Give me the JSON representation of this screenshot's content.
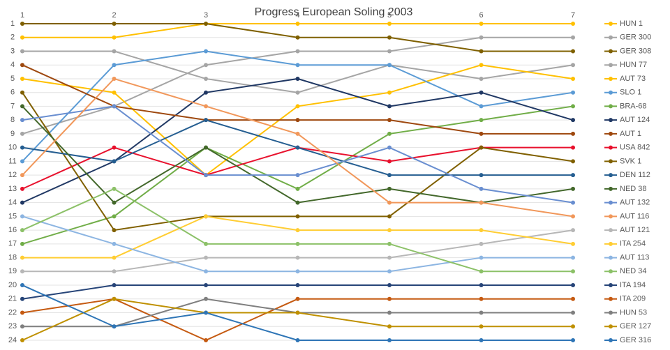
{
  "chart_data": {
    "type": "line",
    "title": "Progress European Soling 2003",
    "x": [
      1,
      2,
      3,
      4,
      5,
      6,
      7
    ],
    "xlim": [
      1,
      7
    ],
    "xticks": [
      1,
      2,
      3,
      4,
      5,
      6,
      7
    ],
    "ylim": [
      1,
      24
    ],
    "yticks": [
      1,
      2,
      3,
      4,
      5,
      6,
      7,
      8,
      9,
      10,
      11,
      12,
      13,
      14,
      15,
      16,
      17,
      18,
      19,
      20,
      21,
      22,
      23,
      24
    ],
    "y_inverted": true,
    "grid": true,
    "legend": "right",
    "series": [
      {
        "name": "HUN 1",
        "color": "#ffc000",
        "values": [
          2,
          2,
          1,
          1,
          1,
          1,
          1
        ]
      },
      {
        "name": "GER 300",
        "color": "#a5a5a5",
        "values": [
          9,
          7,
          4,
          3,
          3,
          2,
          2
        ]
      },
      {
        "name": "GER 308",
        "color": "#7f6000",
        "values": [
          1,
          1,
          1,
          2,
          2,
          3,
          3
        ]
      },
      {
        "name": "HUN 77",
        "color": "#a5a5a5",
        "values": [
          3,
          3,
          5,
          6,
          4,
          5,
          4
        ]
      },
      {
        "name": "AUT 73",
        "color": "#ffc000",
        "values": [
          5,
          6,
          12,
          7,
          6,
          4,
          5
        ]
      },
      {
        "name": "SLO 1",
        "color": "#5b9bd5",
        "values": [
          11,
          4,
          3,
          4,
          4,
          7,
          6
        ]
      },
      {
        "name": "BRA-68",
        "color": "#70ad47",
        "values": [
          17,
          15,
          10,
          13,
          9,
          8,
          7
        ]
      },
      {
        "name": "AUT 124",
        "color": "#203864",
        "values": [
          14,
          11,
          6,
          5,
          7,
          6,
          8
        ]
      },
      {
        "name": "AUT 1",
        "color": "#9e480e",
        "values": [
          4,
          7,
          8,
          8,
          8,
          9,
          9
        ]
      },
      {
        "name": "USA 842",
        "color": "#e8112d",
        "values": [
          13,
          10,
          12,
          10,
          11,
          10,
          10
        ]
      },
      {
        "name": "SVK 1",
        "color": "#806000",
        "values": [
          6,
          16,
          15,
          15,
          15,
          10,
          11
        ]
      },
      {
        "name": "DEN 112",
        "color": "#255e91",
        "values": [
          10,
          11,
          8,
          10,
          12,
          12,
          12
        ]
      },
      {
        "name": "NED 38",
        "color": "#43682b",
        "values": [
          7,
          14,
          10,
          14,
          13,
          14,
          13
        ]
      },
      {
        "name": "AUT 132",
        "color": "#698ed0",
        "values": [
          8,
          7,
          12,
          12,
          10,
          13,
          14
        ]
      },
      {
        "name": "AUT 116",
        "color": "#f1975a",
        "values": [
          12,
          5,
          7,
          9,
          14,
          14,
          15
        ]
      },
      {
        "name": "AUT 121",
        "color": "#b7b7b7",
        "values": [
          19,
          19,
          18,
          18,
          18,
          17,
          16
        ]
      },
      {
        "name": "ITA 254",
        "color": "#ffcd33",
        "values": [
          18,
          18,
          15,
          16,
          16,
          16,
          17
        ]
      },
      {
        "name": "AUT 113",
        "color": "#8cb5e2",
        "values": [
          15,
          17,
          19,
          19,
          19,
          18,
          18
        ]
      },
      {
        "name": "NED 34",
        "color": "#8cc168",
        "values": [
          16,
          13,
          17,
          17,
          17,
          19,
          19
        ]
      },
      {
        "name": "ITA 194",
        "color": "#264478",
        "values": [
          21,
          20,
          20,
          20,
          20,
          20,
          20
        ]
      },
      {
        "name": "ITA 209",
        "color": "#c55a11",
        "values": [
          22,
          21,
          24,
          21,
          21,
          21,
          21
        ]
      },
      {
        "name": "HUN 53",
        "color": "#7f7f7f",
        "values": [
          23,
          23,
          21,
          22,
          22,
          22,
          22
        ]
      },
      {
        "name": "GER 127",
        "color": "#bf9000",
        "values": [
          24,
          21,
          22,
          22,
          23,
          23,
          23
        ]
      },
      {
        "name": "GER 316",
        "color": "#2e75b6",
        "values": [
          20,
          23,
          22,
          24,
          24,
          24,
          24
        ]
      }
    ]
  }
}
